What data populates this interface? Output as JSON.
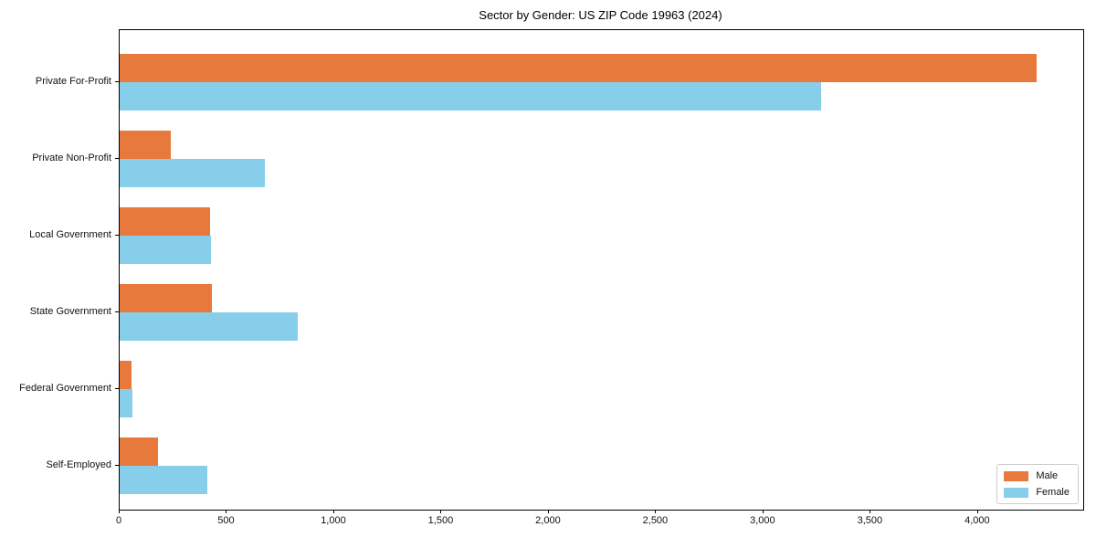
{
  "chart_data": {
    "type": "bar",
    "orientation": "horizontal",
    "title": "Sector by Gender: US ZIP Code 19963 (2024)",
    "categories": [
      "Private For-Profit",
      "Private Non-Profit",
      "Local Government",
      "State Government",
      "Federal Government",
      "Self-Employed"
    ],
    "series": [
      {
        "name": "Male",
        "color": "#e8793c",
        "values": [
          4275,
          240,
          420,
          430,
          55,
          180
        ]
      },
      {
        "name": "Female",
        "color": "#87ceeb",
        "values": [
          3270,
          675,
          425,
          830,
          58,
          410
        ]
      }
    ],
    "xlabel": "",
    "ylabel": "",
    "xlim": [
      0,
      4490
    ],
    "xticks": {
      "values": [
        0,
        500,
        1000,
        1500,
        2000,
        2500,
        3000,
        3500,
        4000
      ],
      "labels": [
        "0",
        "500",
        "1,000",
        "1,500",
        "2,000",
        "2,500",
        "3,000",
        "3,500",
        "4,000"
      ]
    },
    "grid": false,
    "legend": {
      "position": "lower right",
      "entries": [
        "Male",
        "Female"
      ]
    }
  }
}
